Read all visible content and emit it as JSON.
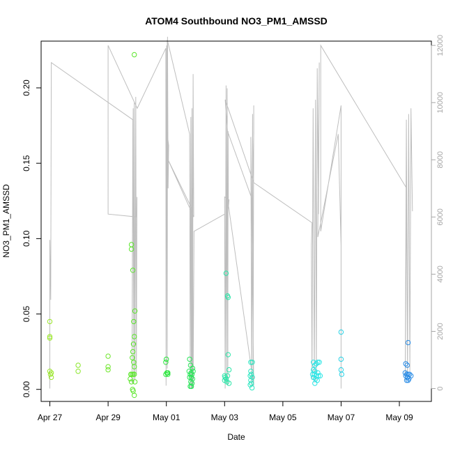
{
  "chart_data": {
    "type": "scatter",
    "title": "ATOM4 Southbound NO3_PM1_AMSSD",
    "xlabel": "Date",
    "ylabel": "NO3_PM1_AMSSD",
    "x_ticks": [
      "Apr 27",
      "Apr 29",
      "May 01",
      "May 03",
      "May 05",
      "May 07",
      "May 09"
    ],
    "x_tick_days": [
      0,
      2,
      4,
      6,
      8,
      10,
      12
    ],
    "xlim": [
      -0.3,
      13.1
    ],
    "y_ticks": [
      "0.00",
      "0.05",
      "0.10",
      "0.15",
      "0.20"
    ],
    "y_tick_values": [
      0.0,
      0.05,
      0.1,
      0.15,
      0.2
    ],
    "ylim": [
      -0.008,
      0.231
    ],
    "y2_ticks": [
      "0",
      "2000",
      "4000",
      "6000",
      "8000",
      "10000",
      "12000"
    ],
    "y2_tick_values": [
      0,
      2000,
      4000,
      6000,
      8000,
      10000,
      12000
    ],
    "y2lim": [
      -450,
      12150
    ],
    "points_color_scale": "day-of-flight gradient: yellow-green → green → cyan → blue",
    "points": [
      {
        "day": 0.0,
        "v": 0.045,
        "color": "#9ae62a"
      },
      {
        "day": 0.0,
        "v": 0.035,
        "color": "#9ae62a"
      },
      {
        "day": 0.0,
        "v": 0.034,
        "color": "#9ae62a"
      },
      {
        "day": 0.0,
        "v": 0.012,
        "color": "#9ae62a"
      },
      {
        "day": 0.02,
        "v": 0.01,
        "color": "#9ae62a"
      },
      {
        "day": 0.05,
        "v": 0.008,
        "color": "#9ae62a"
      },
      {
        "day": 0.05,
        "v": 0.011,
        "color": "#9ae62a"
      },
      {
        "day": 0.97,
        "v": 0.016,
        "color": "#8ae62a"
      },
      {
        "day": 0.97,
        "v": 0.012,
        "color": "#8ae62a"
      },
      {
        "day": 2.0,
        "v": 0.022,
        "color": "#6ee62a"
      },
      {
        "day": 2.0,
        "v": 0.015,
        "color": "#6ee62a"
      },
      {
        "day": 2.0,
        "v": 0.013,
        "color": "#6ee62a"
      },
      {
        "day": 2.8,
        "v": 0.096,
        "color": "#5ae62a"
      },
      {
        "day": 2.8,
        "v": 0.093,
        "color": "#5ae62a"
      },
      {
        "day": 2.85,
        "v": 0.079,
        "color": "#5ae62a"
      },
      {
        "day": 2.9,
        "v": 0.222,
        "color": "#5ae62a"
      },
      {
        "day": 2.92,
        "v": 0.052,
        "color": "#5ae62a"
      },
      {
        "day": 2.88,
        "v": 0.045,
        "color": "#5ae62a"
      },
      {
        "day": 2.9,
        "v": 0.035,
        "color": "#5ae62a"
      },
      {
        "day": 2.87,
        "v": 0.03,
        "color": "#5ae62a"
      },
      {
        "day": 2.85,
        "v": 0.025,
        "color": "#5ae62a"
      },
      {
        "day": 2.83,
        "v": 0.021,
        "color": "#5ae62a"
      },
      {
        "day": 2.88,
        "v": 0.018,
        "color": "#5ae62a"
      },
      {
        "day": 2.9,
        "v": 0.015,
        "color": "#5ae62a"
      },
      {
        "day": 2.78,
        "v": 0.01,
        "color": "#5ae62a"
      },
      {
        "day": 2.82,
        "v": 0.01,
        "color": "#5ae62a"
      },
      {
        "day": 2.86,
        "v": 0.01,
        "color": "#5ae62a"
      },
      {
        "day": 2.9,
        "v": 0.01,
        "color": "#5ae62a"
      },
      {
        "day": 2.76,
        "v": 0.007,
        "color": "#5ae62a"
      },
      {
        "day": 2.8,
        "v": 0.005,
        "color": "#5ae62a"
      },
      {
        "day": 2.92,
        "v": 0.005,
        "color": "#5ae62a"
      },
      {
        "day": 2.84,
        "v": 0.0,
        "color": "#5ae62a"
      },
      {
        "day": 2.86,
        "v": -0.001,
        "color": "#5ae62a"
      },
      {
        "day": 2.9,
        "v": -0.004,
        "color": "#5ae62a"
      },
      {
        "day": 4.0,
        "v": 0.02,
        "color": "#2ae63c"
      },
      {
        "day": 3.98,
        "v": 0.018,
        "color": "#2ae63c"
      },
      {
        "day": 4.02,
        "v": 0.011,
        "color": "#2ae63c"
      },
      {
        "day": 4.05,
        "v": 0.01,
        "color": "#2ae63c"
      },
      {
        "day": 3.98,
        "v": 0.01,
        "color": "#2ae63c"
      },
      {
        "day": 4.05,
        "v": 0.011,
        "color": "#2ae63c"
      },
      {
        "day": 4.8,
        "v": 0.02,
        "color": "#2ae65a"
      },
      {
        "day": 4.83,
        "v": 0.016,
        "color": "#2ae65a"
      },
      {
        "day": 4.9,
        "v": 0.014,
        "color": "#2ae65a"
      },
      {
        "day": 4.78,
        "v": 0.012,
        "color": "#2ae65a"
      },
      {
        "day": 4.85,
        "v": 0.011,
        "color": "#2ae65a"
      },
      {
        "day": 4.92,
        "v": 0.012,
        "color": "#2ae65a"
      },
      {
        "day": 4.82,
        "v": 0.01,
        "color": "#2ae65a"
      },
      {
        "day": 4.88,
        "v": 0.01,
        "color": "#2ae65a"
      },
      {
        "day": 4.8,
        "v": 0.008,
        "color": "#2ae65a"
      },
      {
        "day": 4.86,
        "v": 0.008,
        "color": "#2ae65a"
      },
      {
        "day": 4.9,
        "v": 0.007,
        "color": "#2ae65a"
      },
      {
        "day": 4.84,
        "v": 0.005,
        "color": "#2ae65a"
      },
      {
        "day": 4.88,
        "v": 0.004,
        "color": "#2ae65a"
      },
      {
        "day": 4.82,
        "v": 0.002,
        "color": "#2ae65a"
      },
      {
        "day": 4.86,
        "v": 0.002,
        "color": "#2ae65a"
      },
      {
        "day": 6.05,
        "v": 0.077,
        "color": "#2ae6a8"
      },
      {
        "day": 6.1,
        "v": 0.062,
        "color": "#2ae6a8"
      },
      {
        "day": 6.12,
        "v": 0.061,
        "color": "#2ae6a8"
      },
      {
        "day": 6.12,
        "v": 0.023,
        "color": "#2ae6a8"
      },
      {
        "day": 6.15,
        "v": 0.013,
        "color": "#2ae6a8"
      },
      {
        "day": 6.0,
        "v": 0.009,
        "color": "#2ae6a8"
      },
      {
        "day": 6.02,
        "v": 0.008,
        "color": "#2ae6a8"
      },
      {
        "day": 6.05,
        "v": 0.007,
        "color": "#2ae6a8"
      },
      {
        "day": 6.1,
        "v": 0.009,
        "color": "#2ae6a8"
      },
      {
        "day": 6.0,
        "v": 0.006,
        "color": "#2ae6a8"
      },
      {
        "day": 6.08,
        "v": 0.005,
        "color": "#2ae6a8"
      },
      {
        "day": 6.15,
        "v": 0.004,
        "color": "#2ae6a8"
      },
      {
        "day": 6.9,
        "v": 0.018,
        "color": "#2ae6c0"
      },
      {
        "day": 6.95,
        "v": 0.018,
        "color": "#2ae6c0"
      },
      {
        "day": 6.9,
        "v": 0.012,
        "color": "#2ae6c0"
      },
      {
        "day": 6.92,
        "v": 0.01,
        "color": "#2ae6c0"
      },
      {
        "day": 6.88,
        "v": 0.009,
        "color": "#2ae6c0"
      },
      {
        "day": 6.95,
        "v": 0.008,
        "color": "#2ae6c0"
      },
      {
        "day": 6.9,
        "v": 0.006,
        "color": "#2ae6c0"
      },
      {
        "day": 6.92,
        "v": 0.004,
        "color": "#2ae6c0"
      },
      {
        "day": 6.88,
        "v": 0.003,
        "color": "#2ae6c0"
      },
      {
        "day": 6.94,
        "v": 0.001,
        "color": "#2ae6c0"
      },
      {
        "day": 9.05,
        "v": 0.018,
        "color": "#2ae6e6"
      },
      {
        "day": 9.1,
        "v": 0.016,
        "color": "#2ae6e6"
      },
      {
        "day": 9.15,
        "v": 0.017,
        "color": "#2ae6e6"
      },
      {
        "day": 9.2,
        "v": 0.018,
        "color": "#2ae6e6"
      },
      {
        "day": 9.25,
        "v": 0.018,
        "color": "#2ae6e6"
      },
      {
        "day": 9.05,
        "v": 0.013,
        "color": "#2ae6e6"
      },
      {
        "day": 9.1,
        "v": 0.012,
        "color": "#2ae6e6"
      },
      {
        "day": 9.2,
        "v": 0.011,
        "color": "#2ae6e6"
      },
      {
        "day": 9.02,
        "v": 0.01,
        "color": "#2ae6e6"
      },
      {
        "day": 9.08,
        "v": 0.01,
        "color": "#2ae6e6"
      },
      {
        "day": 9.15,
        "v": 0.009,
        "color": "#2ae6e6"
      },
      {
        "day": 9.22,
        "v": 0.009,
        "color": "#2ae6e6"
      },
      {
        "day": 9.28,
        "v": 0.009,
        "color": "#2ae6e6"
      },
      {
        "day": 9.05,
        "v": 0.008,
        "color": "#2ae6e6"
      },
      {
        "day": 9.12,
        "v": 0.007,
        "color": "#2ae6e6"
      },
      {
        "day": 9.18,
        "v": 0.006,
        "color": "#2ae6e6"
      },
      {
        "day": 9.1,
        "v": 0.004,
        "color": "#2ae6e6"
      },
      {
        "day": 10.0,
        "v": 0.038,
        "color": "#2ad2e6"
      },
      {
        "day": 10.0,
        "v": 0.02,
        "color": "#2ad2e6"
      },
      {
        "day": 10.0,
        "v": 0.013,
        "color": "#2ad2e6"
      },
      {
        "day": 10.02,
        "v": 0.01,
        "color": "#2ad2e6"
      },
      {
        "day": 12.3,
        "v": 0.031,
        "color": "#2a8ce6"
      },
      {
        "day": 12.22,
        "v": 0.017,
        "color": "#2a8ce6"
      },
      {
        "day": 12.27,
        "v": 0.016,
        "color": "#2a8ce6"
      },
      {
        "day": 12.2,
        "v": 0.011,
        "color": "#2a8ce6"
      },
      {
        "day": 12.25,
        "v": 0.01,
        "color": "#2a8ce6"
      },
      {
        "day": 12.3,
        "v": 0.01,
        "color": "#2a8ce6"
      },
      {
        "day": 12.35,
        "v": 0.01,
        "color": "#2a8ce6"
      },
      {
        "day": 12.4,
        "v": 0.009,
        "color": "#2a8ce6"
      },
      {
        "day": 12.22,
        "v": 0.009,
        "color": "#2a8ce6"
      },
      {
        "day": 12.28,
        "v": 0.008,
        "color": "#2a8ce6"
      },
      {
        "day": 12.33,
        "v": 0.007,
        "color": "#2a8ce6"
      },
      {
        "day": 12.25,
        "v": 0.006,
        "color": "#2a8ce6"
      },
      {
        "day": 12.3,
        "v": 0.006,
        "color": "#2a8ce6"
      }
    ],
    "altitude_line": {
      "color": "#bebebe",
      "points": [
        [
          0.0,
          0
        ],
        [
          0.0,
          5200
        ],
        [
          0.03,
          3100
        ],
        [
          0.05,
          11400
        ],
        [
          2.85,
          9400
        ],
        [
          2.82,
          200
        ],
        [
          2.86,
          9800
        ],
        [
          2.88,
          200
        ],
        [
          2.9,
          10000
        ],
        [
          2.92,
          300
        ],
        [
          2.95,
          10200
        ],
        [
          2.97,
          500
        ],
        [
          2.99,
          6700
        ],
        [
          2.98,
          6000
        ],
        [
          2.0,
          6100
        ],
        [
          2.0,
          12000
        ],
        [
          3.0,
          9800
        ],
        [
          3.98,
          11900
        ],
        [
          3.99,
          100
        ],
        [
          4.01,
          12000
        ],
        [
          4.03,
          700
        ],
        [
          4.04,
          12300
        ],
        [
          4.06,
          7000
        ],
        [
          4.08,
          8500
        ],
        [
          4.03,
          8900
        ],
        [
          4.03,
          12200
        ],
        [
          4.8,
          8900
        ],
        [
          4.82,
          0
        ],
        [
          4.84,
          9500
        ],
        [
          4.86,
          0
        ],
        [
          4.88,
          9800
        ],
        [
          4.9,
          0
        ],
        [
          4.92,
          11000
        ],
        [
          4.94,
          6000
        ],
        [
          4.06,
          8000
        ],
        [
          4.87,
          6300
        ],
        [
          4.88,
          0
        ],
        [
          4.9,
          7000
        ],
        [
          4.92,
          0
        ],
        [
          4.95,
          5500
        ],
        [
          6.0,
          6100
        ],
        [
          6.02,
          0
        ],
        [
          6.05,
          10600
        ],
        [
          6.07,
          200
        ],
        [
          6.09,
          10500
        ],
        [
          6.11,
          100
        ],
        [
          6.12,
          9000
        ],
        [
          6.13,
          6300
        ],
        [
          6.15,
          6600
        ],
        [
          6.0,
          6700
        ],
        [
          6.02,
          200
        ],
        [
          6.05,
          7000
        ],
        [
          7.0,
          100
        ],
        [
          6.9,
          8800
        ],
        [
          6.93,
          100
        ],
        [
          6.96,
          9600
        ],
        [
          6.98,
          200
        ],
        [
          7.0,
          9900
        ],
        [
          7.0,
          8900
        ],
        [
          6.95,
          6600
        ],
        [
          6.1,
          9000
        ],
        [
          6.02,
          10100
        ],
        [
          7.0,
          7200
        ],
        [
          9.0,
          5800
        ],
        [
          8.98,
          5000
        ],
        [
          9.0,
          300
        ],
        [
          9.04,
          9800
        ],
        [
          9.08,
          200
        ],
        [
          9.12,
          10100
        ],
        [
          9.15,
          300
        ],
        [
          9.18,
          11200
        ],
        [
          9.22,
          6100
        ],
        [
          9.25,
          11400
        ],
        [
          9.2,
          5300
        ],
        [
          9.3,
          5800
        ],
        [
          9.9,
          8900
        ],
        [
          10.0,
          5000
        ],
        [
          10.0,
          0
        ],
        [
          10.0,
          9900
        ],
        [
          9.3,
          5500
        ],
        [
          9.3,
          12000
        ],
        [
          12.25,
          7000
        ],
        [
          12.2,
          300
        ],
        [
          12.24,
          9400
        ],
        [
          12.28,
          400
        ],
        [
          12.32,
          9600
        ],
        [
          12.36,
          600
        ],
        [
          12.4,
          9800
        ],
        [
          12.45,
          6200
        ]
      ]
    }
  }
}
